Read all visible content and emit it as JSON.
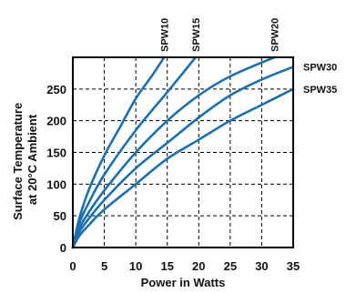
{
  "chart_data": {
    "type": "line",
    "xlabel": "Power in Watts",
    "ylabel_lines": [
      "Surface Temperature",
      "at 20°C Ambient"
    ],
    "xlim": [
      0,
      35
    ],
    "ylim": [
      0,
      300
    ],
    "x_ticks": [
      0,
      5,
      10,
      15,
      20,
      25,
      30,
      35
    ],
    "y_ticks": [
      0,
      50,
      100,
      150,
      200,
      250
    ],
    "grid": true,
    "grid_style": "dashed",
    "line_color": "#1a6fb0",
    "series": [
      {
        "name": "SPW10",
        "label_position": "top",
        "points": [
          [
            0,
            0
          ],
          [
            1,
            45
          ],
          [
            2.5,
            90
          ],
          [
            5,
            145
          ],
          [
            7.5,
            190
          ],
          [
            10,
            235
          ],
          [
            12.5,
            270
          ],
          [
            14.5,
            300
          ]
        ]
      },
      {
        "name": "SPW15",
        "label_position": "top",
        "points": [
          [
            0,
            0
          ],
          [
            1,
            38
          ],
          [
            2.5,
            70
          ],
          [
            5,
            115
          ],
          [
            10,
            185
          ],
          [
            15,
            245
          ],
          [
            19.5,
            300
          ]
        ]
      },
      {
        "name": "SPW20",
        "label_position": "top",
        "points": [
          [
            0,
            0
          ],
          [
            1,
            30
          ],
          [
            2.5,
            55
          ],
          [
            5,
            90
          ],
          [
            10,
            150
          ],
          [
            15,
            200
          ],
          [
            20,
            240
          ],
          [
            25,
            270
          ],
          [
            32,
            300
          ]
        ]
      },
      {
        "name": "SPW30",
        "label_position": "right",
        "points": [
          [
            0,
            0
          ],
          [
            1,
            24
          ],
          [
            2.5,
            45
          ],
          [
            5,
            75
          ],
          [
            10,
            125
          ],
          [
            15,
            165
          ],
          [
            20,
            205
          ],
          [
            25,
            240
          ],
          [
            30,
            265
          ],
          [
            35,
            285
          ]
        ]
      },
      {
        "name": "SPW35",
        "label_position": "right",
        "points": [
          [
            0,
            0
          ],
          [
            1,
            18
          ],
          [
            2.5,
            35
          ],
          [
            5,
            60
          ],
          [
            10,
            100
          ],
          [
            15,
            140
          ],
          [
            20,
            170
          ],
          [
            25,
            200
          ],
          [
            30,
            225
          ],
          [
            35,
            250
          ]
        ]
      }
    ]
  }
}
